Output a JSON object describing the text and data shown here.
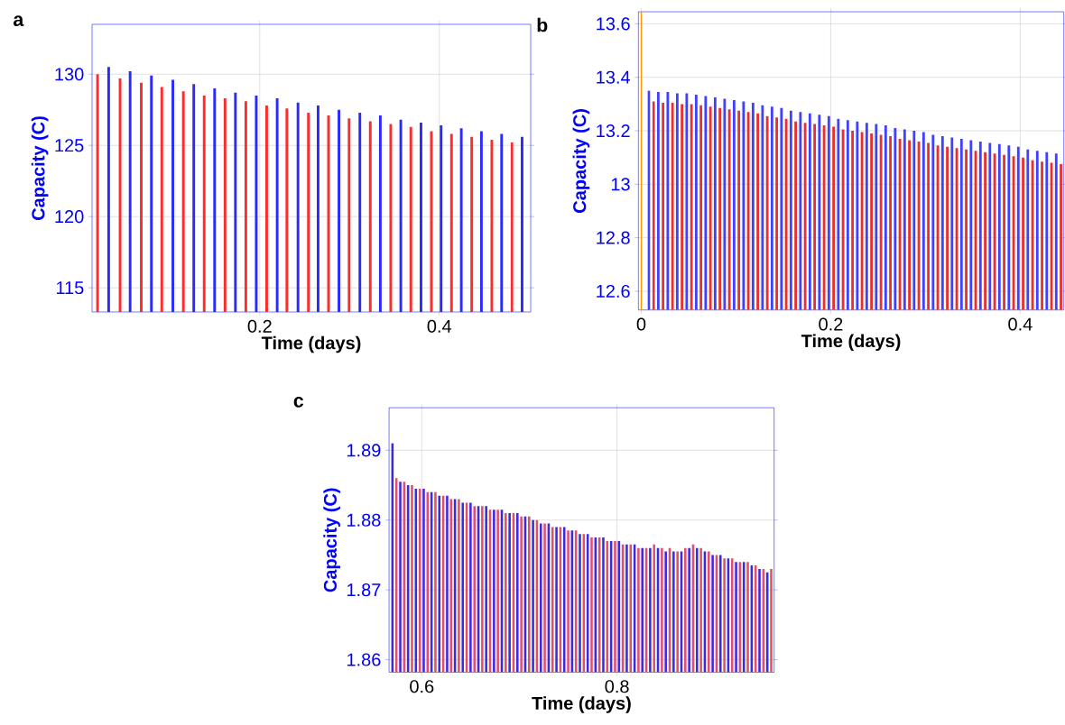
{
  "chart_data": [
    {
      "type": "bar",
      "title": "a",
      "xlabel": "Time (days)",
      "ylabel": "Capacity (C)",
      "grid": true,
      "xlim": [
        0.0132,
        0.5018
      ],
      "ylim": [
        113.3,
        133.5
      ],
      "xticks": [
        0.2,
        0.4
      ],
      "yticks": [
        115,
        120,
        125,
        130
      ],
      "series": [
        {
          "color": "#2a2aff",
          "x": [
            0.0317,
            0.0556,
            0.0793,
            0.1032,
            0.1265,
            0.1497,
            0.1729,
            0.1961,
            0.2194,
            0.2426,
            0.265,
            0.2882,
            0.3115,
            0.3343,
            0.3571,
            0.3796,
            0.402,
            0.4245,
            0.4469,
            0.4694,
            0.4922
          ],
          "values": [
            130.5,
            130.2,
            129.9,
            129.6,
            129.3,
            129.0,
            128.7,
            128.5,
            128.3,
            128.0,
            127.8,
            127.5,
            127.3,
            127.1,
            126.8,
            126.6,
            126.4,
            126.2,
            126.0,
            125.8,
            125.6
          ]
        },
        {
          "color": "#ff2a2a",
          "x": [
            0.0193,
            0.0444,
            0.068,
            0.0909,
            0.1149,
            0.1381,
            0.1613,
            0.1845,
            0.2077,
            0.2302,
            0.2542,
            0.2766,
            0.2995,
            0.3231,
            0.3459,
            0.3683,
            0.3912,
            0.4136,
            0.4361,
            0.4585,
            0.481
          ],
          "values": [
            130.0,
            129.7,
            129.4,
            129.1,
            128.8,
            128.5,
            128.3,
            128.1,
            127.8,
            127.6,
            127.3,
            127.1,
            126.9,
            126.7,
            126.5,
            126.3,
            126.0,
            125.8,
            125.6,
            125.4,
            125.2
          ]
        }
      ]
    },
    {
      "type": "bar",
      "title": "b",
      "xlabel": "Time (days)",
      "ylabel": "Capacity (C)",
      "grid": true,
      "xlim": [
        -0.003,
        0.446
      ],
      "ylim": [
        12.53,
        13.645
      ],
      "xticks": [
        0,
        0.2,
        0.4
      ],
      "yticks": [
        12.6,
        12.8,
        13,
        13.2,
        13.4,
        13.6
      ],
      "ref_lines": [
        {
          "axis": "x",
          "value": 0,
          "color": "#ff9900"
        }
      ],
      "series": [
        {
          "color": "#4040ff",
          "x": [
            0.008,
            0.018,
            0.028,
            0.038,
            0.048,
            0.058,
            0.068,
            0.078,
            0.088,
            0.098,
            0.108,
            0.118,
            0.128,
            0.138,
            0.148,
            0.158,
            0.168,
            0.178,
            0.188,
            0.198,
            0.208,
            0.218,
            0.228,
            0.238,
            0.248,
            0.258,
            0.268,
            0.278,
            0.288,
            0.298,
            0.308,
            0.318,
            0.328,
            0.338,
            0.348,
            0.358,
            0.368,
            0.378,
            0.388,
            0.398,
            0.408,
            0.418,
            0.428,
            0.438
          ],
          "values": [
            13.35,
            13.345,
            13.345,
            13.34,
            13.34,
            13.335,
            13.33,
            13.325,
            13.32,
            13.315,
            13.31,
            13.305,
            13.295,
            13.29,
            13.285,
            13.275,
            13.27,
            13.265,
            13.26,
            13.255,
            13.245,
            13.24,
            13.235,
            13.23,
            13.225,
            13.22,
            13.21,
            13.205,
            13.2,
            13.195,
            13.185,
            13.18,
            13.175,
            13.17,
            13.165,
            13.16,
            13.155,
            13.15,
            13.145,
            13.14,
            13.13,
            13.125,
            13.12,
            13.115
          ]
        },
        {
          "color": "#e83030",
          "x": [
            0.013,
            0.023,
            0.033,
            0.043,
            0.053,
            0.063,
            0.073,
            0.083,
            0.093,
            0.103,
            0.113,
            0.123,
            0.133,
            0.143,
            0.153,
            0.163,
            0.173,
            0.183,
            0.193,
            0.203,
            0.213,
            0.223,
            0.233,
            0.243,
            0.253,
            0.263,
            0.273,
            0.283,
            0.293,
            0.303,
            0.313,
            0.323,
            0.333,
            0.343,
            0.353,
            0.363,
            0.373,
            0.383,
            0.393,
            0.403,
            0.413,
            0.423,
            0.433,
            0.443
          ],
          "values": [
            13.31,
            13.305,
            13.305,
            13.3,
            13.3,
            13.295,
            13.29,
            13.285,
            13.28,
            13.275,
            13.27,
            13.265,
            13.255,
            13.25,
            13.245,
            13.235,
            13.23,
            13.225,
            13.22,
            13.215,
            13.205,
            13.2,
            13.195,
            13.19,
            13.185,
            13.18,
            13.17,
            13.165,
            13.16,
            13.155,
            13.145,
            13.14,
            13.135,
            13.13,
            13.125,
            13.12,
            13.115,
            13.11,
            13.105,
            13.1,
            13.09,
            13.085,
            13.08,
            13.075
          ]
        }
      ]
    },
    {
      "type": "bar",
      "title": "c",
      "xlabel": "Time (days)",
      "ylabel": "Capacity (C)",
      "grid": true,
      "xlim": [
        0.5665,
        0.961
      ],
      "ylim": [
        1.8582,
        1.8961
      ],
      "xticks": [
        0.6,
        0.8
      ],
      "yticks": [
        1.86,
        1.87,
        1.88,
        1.89
      ],
      "series": [
        {
          "color": "#3a2ae0",
          "x": [
            0.57,
            0.578,
            0.586,
            0.594,
            0.602,
            0.61,
            0.618,
            0.626,
            0.634,
            0.642,
            0.65,
            0.658,
            0.666,
            0.674,
            0.682,
            0.69,
            0.698,
            0.706,
            0.714,
            0.722,
            0.73,
            0.738,
            0.746,
            0.754,
            0.762,
            0.77,
            0.778,
            0.786,
            0.794,
            0.802,
            0.81,
            0.818,
            0.826,
            0.834,
            0.842,
            0.85,
            0.858,
            0.866,
            0.874,
            0.882,
            0.89,
            0.898,
            0.906,
            0.914,
            0.922,
            0.93,
            0.938,
            0.946,
            0.954
          ],
          "values": [
            1.891,
            1.8855,
            1.885,
            1.8845,
            1.8845,
            1.884,
            1.8835,
            1.8835,
            1.883,
            1.8825,
            1.8825,
            1.882,
            1.882,
            1.8815,
            1.8815,
            1.881,
            1.881,
            1.8805,
            1.88,
            1.8795,
            1.8795,
            1.879,
            1.879,
            1.8785,
            1.878,
            1.878,
            1.8775,
            1.8775,
            1.877,
            1.877,
            1.8765,
            1.8765,
            1.876,
            1.876,
            1.876,
            1.8755,
            1.8755,
            1.8755,
            1.876,
            1.876,
            1.8755,
            1.875,
            1.875,
            1.8745,
            1.874,
            1.874,
            1.8735,
            1.873,
            1.8725
          ]
        },
        {
          "color": "#e0506a",
          "x": [
            0.574,
            0.582,
            0.59,
            0.598,
            0.606,
            0.614,
            0.622,
            0.63,
            0.638,
            0.646,
            0.654,
            0.662,
            0.67,
            0.678,
            0.686,
            0.694,
            0.702,
            0.71,
            0.718,
            0.726,
            0.734,
            0.742,
            0.75,
            0.758,
            0.766,
            0.774,
            0.782,
            0.79,
            0.798,
            0.806,
            0.814,
            0.822,
            0.83,
            0.838,
            0.846,
            0.854,
            0.862,
            0.87,
            0.878,
            0.886,
            0.894,
            0.902,
            0.91,
            0.918,
            0.926,
            0.934,
            0.942,
            0.95,
            0.958
          ],
          "values": [
            1.886,
            1.8855,
            1.885,
            1.8845,
            1.884,
            1.884,
            1.8835,
            1.883,
            1.883,
            1.8825,
            1.882,
            1.882,
            1.8815,
            1.8815,
            1.881,
            1.881,
            1.8805,
            1.8805,
            1.88,
            1.8795,
            1.879,
            1.879,
            1.8785,
            1.8785,
            1.878,
            1.8775,
            1.8775,
            1.877,
            1.877,
            1.8765,
            1.8765,
            1.876,
            1.876,
            1.8765,
            1.876,
            1.876,
            1.8755,
            1.876,
            1.8765,
            1.876,
            1.8755,
            1.875,
            1.8745,
            1.8745,
            1.874,
            1.874,
            1.8735,
            1.873,
            1.873
          ]
        }
      ]
    }
  ]
}
